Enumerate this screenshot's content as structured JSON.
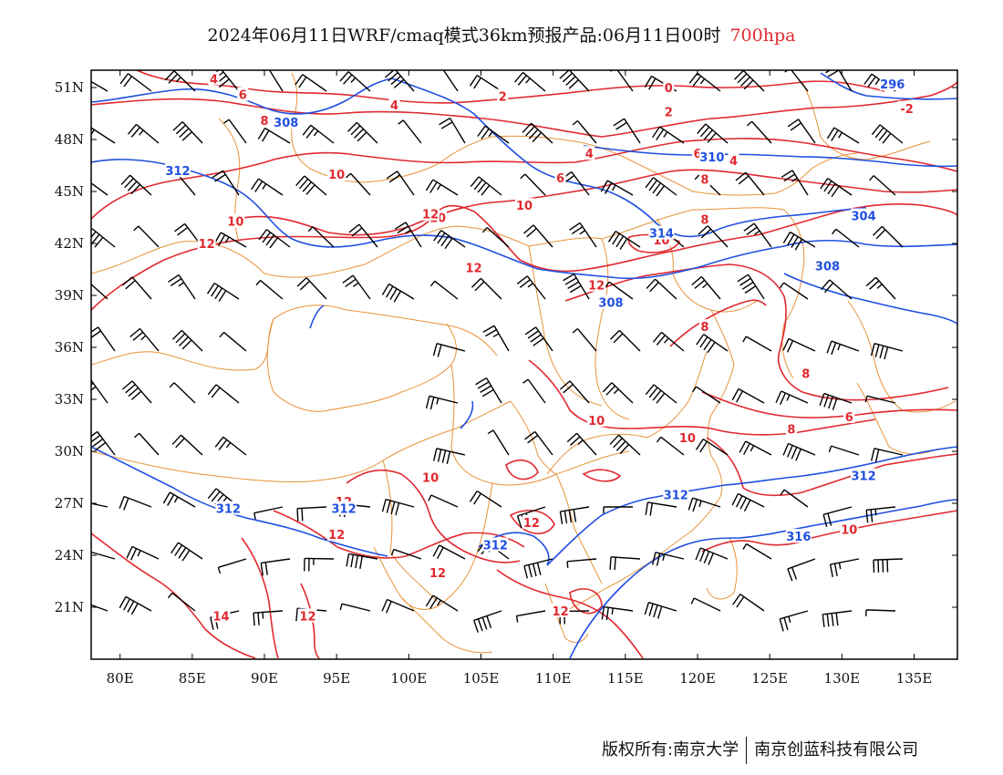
{
  "title": {
    "main": "2024年06月11日WRF/cmaq模式36km预报产品:06月11日00时",
    "level": "700hpa"
  },
  "map": {
    "lon_range": [
      78,
      138
    ],
    "lat_range": [
      18,
      52
    ],
    "x_ticks": [
      "80E",
      "85E",
      "90E",
      "95E",
      "100E",
      "105E",
      "110E",
      "115E",
      "120E",
      "125E",
      "130E",
      "135E"
    ],
    "x_tick_values": [
      80,
      85,
      90,
      95,
      100,
      105,
      110,
      115,
      120,
      125,
      130,
      135
    ],
    "y_ticks": [
      "51N",
      "48N",
      "45N",
      "42N",
      "39N",
      "36N",
      "33N",
      "30N",
      "27N",
      "24N",
      "21N"
    ],
    "y_tick_values": [
      51,
      48,
      45,
      42,
      39,
      36,
      33,
      30,
      27,
      24,
      21
    ],
    "colors": {
      "temperature": "#e0292f",
      "height": "#1f4fe0",
      "boundary": "#e8923a",
      "wind": "#000000"
    },
    "temperature_labels": [
      {
        "lon": 86.5,
        "lat": 51.5,
        "text": "4"
      },
      {
        "lon": 88.5,
        "lat": 50.6,
        "text": "6"
      },
      {
        "lon": 90,
        "lat": 49.1,
        "text": "8"
      },
      {
        "lon": 99,
        "lat": 50,
        "text": "4"
      },
      {
        "lon": 106.5,
        "lat": 50.5,
        "text": "2"
      },
      {
        "lon": 118,
        "lat": 51,
        "text": "0"
      },
      {
        "lon": 118,
        "lat": 49.6,
        "text": "2"
      },
      {
        "lon": 134.5,
        "lat": 49.8,
        "text": "-2"
      },
      {
        "lon": 112.5,
        "lat": 47.2,
        "text": "4"
      },
      {
        "lon": 110.5,
        "lat": 45.8,
        "text": "6"
      },
      {
        "lon": 120.5,
        "lat": 45.7,
        "text": "8"
      },
      {
        "lon": 102,
        "lat": 43.5,
        "text": "10"
      },
      {
        "lon": 108,
        "lat": 44.2,
        "text": "10"
      },
      {
        "lon": 122.5,
        "lat": 46.8,
        "text": "4"
      },
      {
        "lon": 120,
        "lat": 47.2,
        "text": "6"
      },
      {
        "lon": 120.5,
        "lat": 43.4,
        "text": "8"
      },
      {
        "lon": 117.5,
        "lat": 42.2,
        "text": "10"
      },
      {
        "lon": 95,
        "lat": 46,
        "text": "10"
      },
      {
        "lon": 88,
        "lat": 43.3,
        "text": "10"
      },
      {
        "lon": 86,
        "lat": 42,
        "text": "12"
      },
      {
        "lon": 101.5,
        "lat": 43.7,
        "text": "12"
      },
      {
        "lon": 104.5,
        "lat": 40.6,
        "text": "12"
      },
      {
        "lon": 113,
        "lat": 39.6,
        "text": "12"
      },
      {
        "lon": 120.5,
        "lat": 37.2,
        "text": "8"
      },
      {
        "lon": 127.5,
        "lat": 34.5,
        "text": "8"
      },
      {
        "lon": 130.5,
        "lat": 32,
        "text": "6"
      },
      {
        "lon": 113,
        "lat": 31.8,
        "text": "10"
      },
      {
        "lon": 119.3,
        "lat": 30.8,
        "text": "10"
      },
      {
        "lon": 126.5,
        "lat": 31.3,
        "text": "8"
      },
      {
        "lon": 101.5,
        "lat": 28.5,
        "text": "10"
      },
      {
        "lon": 108.5,
        "lat": 25.9,
        "text": "12"
      },
      {
        "lon": 95,
        "lat": 25.2,
        "text": "12"
      },
      {
        "lon": 102,
        "lat": 23,
        "text": "12"
      },
      {
        "lon": 110.5,
        "lat": 20.8,
        "text": "12"
      },
      {
        "lon": 93,
        "lat": 20.5,
        "text": "12"
      },
      {
        "lon": 87,
        "lat": 20.5,
        "text": "14"
      },
      {
        "lon": 130.5,
        "lat": 25.5,
        "text": "10"
      },
      {
        "lon": 95.5,
        "lat": 27.1,
        "text": "12"
      }
    ],
    "height_labels": [
      {
        "lon": 91.5,
        "lat": 49,
        "text": "308"
      },
      {
        "lon": 84,
        "lat": 46.2,
        "text": "312"
      },
      {
        "lon": 121,
        "lat": 47,
        "text": "310"
      },
      {
        "lon": 133.5,
        "lat": 51.2,
        "text": "296"
      },
      {
        "lon": 131.5,
        "lat": 43.6,
        "text": "304"
      },
      {
        "lon": 129,
        "lat": 40.7,
        "text": "308"
      },
      {
        "lon": 117.5,
        "lat": 42.6,
        "text": "314"
      },
      {
        "lon": 114,
        "lat": 38.6,
        "text": "308"
      },
      {
        "lon": 131.5,
        "lat": 28.6,
        "text": "312"
      },
      {
        "lon": 87.5,
        "lat": 26.7,
        "text": "312"
      },
      {
        "lon": 95.5,
        "lat": 26.7,
        "text": "312"
      },
      {
        "lon": 106,
        "lat": 24.6,
        "text": "312"
      },
      {
        "lon": 118.5,
        "lat": 27.5,
        "text": "312"
      },
      {
        "lon": 127,
        "lat": 25.1,
        "text": "316"
      }
    ]
  },
  "footer": {
    "copyright": "版权所有:南京大学",
    "partner": "南京创蓝科技有限公司"
  }
}
